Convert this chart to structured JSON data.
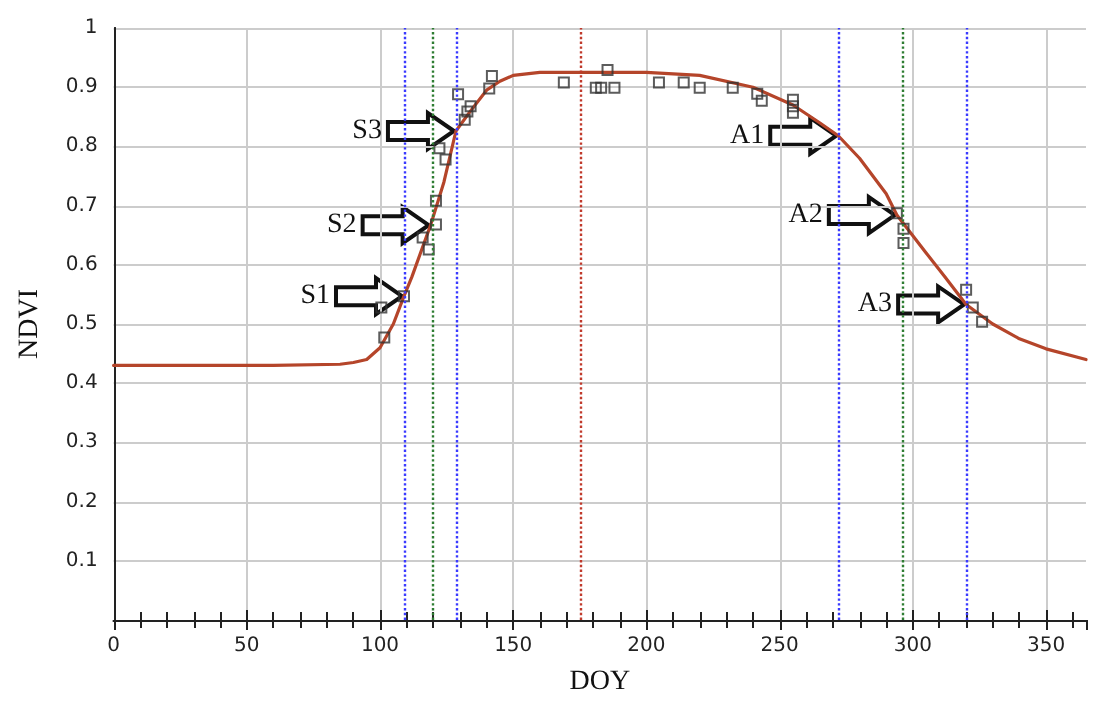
{
  "chart_data": {
    "type": "line",
    "xlabel": "DOY",
    "ylabel": "NDVI",
    "xlim": [
      0,
      365
    ],
    "xticks": [
      0,
      50,
      100,
      150,
      200,
      250,
      300,
      350
    ],
    "ylim": [
      0,
      1
    ],
    "yticks": [
      0.1,
      0.2,
      0.3,
      0.4,
      0.5,
      0.6,
      0.7,
      0.8,
      0.9,
      1
    ],
    "grid": true,
    "series": [
      {
        "color": "#b5452a",
        "marker": "none",
        "line_style": "solid",
        "x": [
          0,
          60,
          85,
          90,
          95,
          100,
          105,
          109,
          112,
          116,
          119,
          124,
          128.5,
          134,
          140,
          145,
          150,
          160,
          200,
          220,
          240,
          255,
          265,
          272,
          280,
          290,
          294,
          305,
          312,
          320,
          330,
          340,
          350,
          365
        ],
        "values": [
          0.43,
          0.43,
          0.432,
          0.435,
          0.44,
          0.46,
          0.5,
          0.547,
          0.58,
          0.63,
          0.667,
          0.74,
          0.826,
          0.86,
          0.895,
          0.91,
          0.92,
          0.925,
          0.925,
          0.92,
          0.9,
          0.87,
          0.84,
          0.818,
          0.78,
          0.72,
          0.684,
          0.62,
          0.58,
          0.533,
          0.5,
          0.475,
          0.458,
          0.44
        ]
      },
      {
        "type": "scatter",
        "color": "#333333",
        "marker": "square",
        "x": [
          100.5,
          101.6,
          109,
          116,
          118.3,
          121,
          121,
          122.3,
          124.6,
          129.3,
          131.8,
          132.8,
          134,
          141,
          142,
          169,
          181,
          183,
          185.4,
          188,
          204.7,
          214,
          220,
          232.4,
          241.6,
          243.3,
          255,
          255,
          255,
          294,
          296.5,
          296.5,
          320,
          322.5,
          326
        ],
        "values": [
          0.528,
          0.477,
          0.547,
          0.646,
          0.626,
          0.668,
          0.708,
          0.797,
          0.778,
          0.888,
          0.845,
          0.859,
          0.868,
          0.898,
          0.919,
          0.908,
          0.899,
          0.899,
          0.929,
          0.899,
          0.908,
          0.908,
          0.899,
          0.899,
          0.889,
          0.877,
          0.879,
          0.868,
          0.857,
          0.687,
          0.661,
          0.637,
          0.558,
          0.528,
          0.504
        ]
      }
    ],
    "ref_lines": [
      {
        "axis": "x",
        "value": 109,
        "color": "#3a3aff",
        "line_style": "dotted"
      },
      {
        "axis": "x",
        "value": 120,
        "color": "#2e7d32",
        "line_style": "dotted"
      },
      {
        "axis": "x",
        "value": 129,
        "color": "#3a3aff",
        "line_style": "dotted"
      },
      {
        "axis": "x",
        "value": 175,
        "color": "#c0392b",
        "line_style": "dotted"
      },
      {
        "axis": "x",
        "value": 272,
        "color": "#3a3aff",
        "line_style": "dotted"
      },
      {
        "axis": "x",
        "value": 296,
        "color": "#2e7d32",
        "line_style": "dotted"
      },
      {
        "axis": "x",
        "value": 320,
        "color": "#3a3aff",
        "line_style": "dotted"
      }
    ],
    "annotations": [
      {
        "text": "S1",
        "x": 109,
        "y": 0.547
      },
      {
        "text": "S2",
        "x": 119,
        "y": 0.667
      },
      {
        "text": "S3",
        "x": 128.5,
        "y": 0.826
      },
      {
        "text": "A1",
        "x": 272,
        "y": 0.818
      },
      {
        "text": "A2",
        "x": 294,
        "y": 0.684
      },
      {
        "text": "A3",
        "x": 320,
        "y": 0.533
      }
    ]
  }
}
